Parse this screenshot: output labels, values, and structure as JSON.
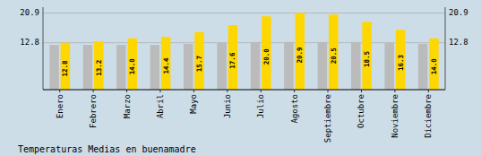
{
  "chart_data": {
    "type": "bar",
    "title": "Temperaturas Medias en buenamadre",
    "categories": [
      "Enero",
      "Febrero",
      "Marzo",
      "Abril",
      "Mayo",
      "Junio",
      "Julio",
      "Agosto",
      "Septiembre",
      "Octubre",
      "Noviembre",
      "Diciembre"
    ],
    "series": [
      {
        "color": "#BBBBBB",
        "values": [
          12.2,
          12.2,
          12.2,
          12.2,
          12.5,
          12.7,
          13.0,
          13.0,
          13.0,
          13.0,
          12.7,
          12.5
        ]
      },
      {
        "color": "#FFD700",
        "values": [
          12.8,
          13.2,
          14.0,
          14.4,
          15.7,
          17.6,
          20.0,
          20.9,
          20.5,
          18.5,
          16.3,
          14.0
        ],
        "value_labels": [
          "12.8",
          "13.2",
          "14.0",
          "14.4",
          "15.7",
          "17.6",
          "20.0",
          "20.9",
          "20.5",
          "18.5",
          "16.3",
          "14.0"
        ],
        "data_labels": true
      }
    ],
    "ylim": [
      0,
      22.5
    ],
    "yticks": [
      12.8,
      20.9
    ],
    "y2lim": [
      0,
      22.5
    ],
    "y2ticks": [
      12.8,
      20.9
    ],
    "grid": true
  }
}
